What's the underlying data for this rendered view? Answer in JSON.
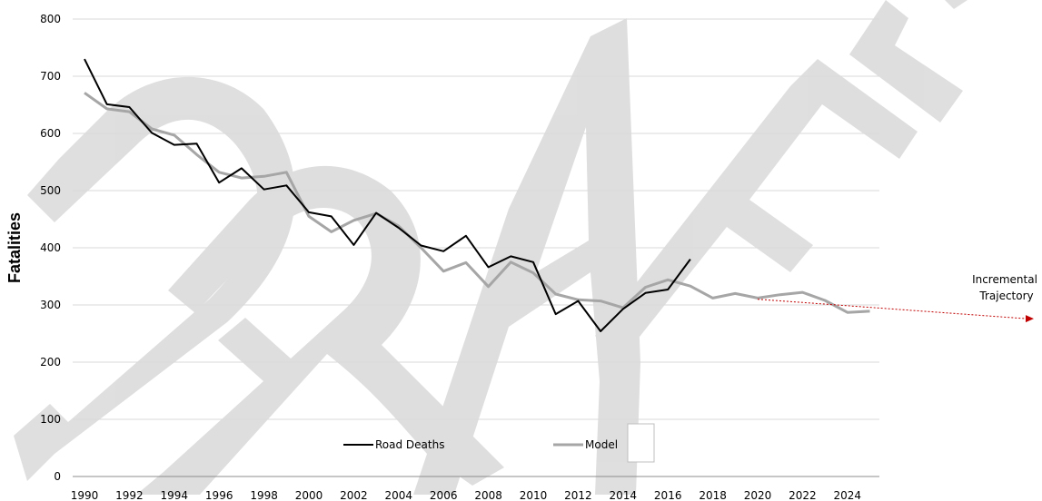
{
  "chart_data": {
    "type": "line",
    "title": "",
    "xlabel": "",
    "ylabel": "Fatalities",
    "ylim": [
      0,
      800
    ],
    "yticks": [
      0,
      100,
      200,
      300,
      400,
      500,
      600,
      700,
      800
    ],
    "xlim": [
      1990,
      2025
    ],
    "xtick_labels": [
      "1990",
      "1992",
      "1994",
      "1996",
      "1998",
      "2000",
      "2002",
      "2004",
      "2006",
      "2008",
      "2010",
      "2012",
      "2014",
      "2016",
      "2018",
      "2020",
      "2022",
      "2024"
    ],
    "grid": true,
    "legend_placement": "bottom-center",
    "series": [
      {
        "name": "Road Deaths",
        "color": "#000000",
        "x": [
          1990,
          1991,
          1992,
          1993,
          1994,
          1995,
          1996,
          1997,
          1998,
          1999,
          2000,
          2001,
          2002,
          2003,
          2004,
          2005,
          2006,
          2007,
          2008,
          2009,
          2010,
          2011,
          2012,
          2013,
          2014,
          2015,
          2016,
          2017
        ],
        "values": [
          730,
          651,
          646,
          601,
          580,
          582,
          514,
          539,
          502,
          509,
          462,
          455,
          405,
          461,
          435,
          404,
          394,
          421,
          366,
          385,
          375,
          284,
          307,
          254,
          293,
          321,
          327,
          380
        ]
      },
      {
        "name": "Model",
        "color": "#a6a6a6",
        "x": [
          1990,
          1991,
          1992,
          1993,
          1994,
          1995,
          1996,
          1997,
          1998,
          1999,
          2000,
          2001,
          2002,
          2003,
          2004,
          2005,
          2006,
          2007,
          2008,
          2009,
          2010,
          2011,
          2012,
          2013,
          2014,
          2015,
          2016,
          2017,
          2018,
          2019,
          2020,
          2021,
          2022,
          2023,
          2024,
          2025
        ],
        "values": [
          671,
          643,
          638,
          608,
          597,
          563,
          532,
          522,
          525,
          532,
          455,
          428,
          448,
          460,
          438,
          400,
          359,
          374,
          332,
          375,
          356,
          319,
          309,
          307,
          295,
          331,
          344,
          333,
          312,
          320,
          312,
          318,
          322,
          308,
          287,
          289
        ]
      }
    ],
    "annotation": {
      "label_line1": "Incremental",
      "label_line2": "Trajectory",
      "color": "#c00000",
      "x": [
        2020,
        2027
      ],
      "values": [
        310,
        276
      ]
    },
    "watermark_text": "DRAFT"
  }
}
